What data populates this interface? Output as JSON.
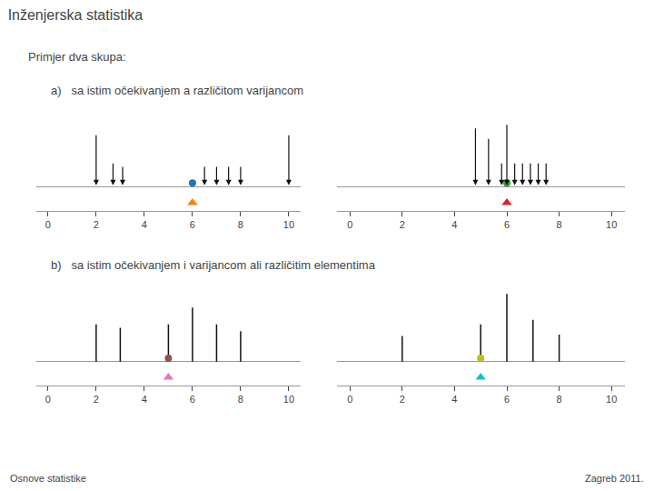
{
  "chart_data": [
    {
      "type": "arrow",
      "title": "Inženjerska statistika",
      "annotations": [
        "Primjer dva skupa:",
        "Osnove statistike",
        "Zagreb 2011."
      ],
      "subtitle": "a)   sa istim očekivanjem a različitom varijancom",
      "x": [
        2.0,
        2.7,
        3.1,
        6.5,
        7.0,
        7.5,
        8.0,
        10.0
      ],
      "values": [
        0.75,
        0.35,
        0.3,
        0.3,
        0.3,
        0.3,
        0.3,
        0.75
      ],
      "mean": 6.0,
      "color": "#111111",
      "xlim": [
        -0.5,
        10.5
      ],
      "xticks": [
        0,
        2,
        4,
        6,
        8,
        10
      ],
      "ylim": [
        -0.35,
        1.05
      ],
      "tick_labels": "x",
      "grid": false
    },
    {
      "type": "arrow",
      "x": [
        4.8,
        5.3,
        5.8,
        6.0,
        6.3,
        6.6,
        6.9,
        7.2,
        7.5
      ],
      "values": [
        0.85,
        0.7,
        0.35,
        0.9,
        0.35,
        0.35,
        0.35,
        0.35,
        0.35
      ],
      "mean": 6.0,
      "color": "#111111",
      "xlim": [
        -0.5,
        10.5
      ],
      "xticks": [
        0,
        2,
        4,
        6,
        8,
        10
      ],
      "ylim": [
        -0.35,
        1.05
      ],
      "tick_labels": "x",
      "grid": false
    },
    {
      "type": "stem",
      "subtitle": "b)   sa istim očekivanjem i varijancom ali različitim elementima",
      "x": [
        2.0,
        3.0,
        5.0,
        6.0,
        7.0,
        8.0
      ],
      "values": [
        0.55,
        0.5,
        0.55,
        0.8,
        0.55,
        0.45
      ],
      "mean": 5.0,
      "color": "#111111",
      "xlim": [
        -0.5,
        10.5
      ],
      "xticks": [
        0,
        2,
        4,
        6,
        8,
        10
      ],
      "ylim": [
        -0.35,
        1.1
      ],
      "tick_labels": "x",
      "grid": false
    },
    {
      "type": "stem",
      "x": [
        2.0,
        5.0,
        6.0,
        7.0,
        8.0
      ],
      "values": [
        0.38,
        0.55,
        1.0,
        0.62,
        0.4
      ],
      "mean": 5.0,
      "color": "#111111",
      "xlim": [
        -0.5,
        10.5
      ],
      "xticks": [
        0,
        2,
        4,
        6,
        8,
        10
      ],
      "ylim": [
        -0.35,
        1.1
      ],
      "tick_labels": "x",
      "grid": false
    }
  ]
}
